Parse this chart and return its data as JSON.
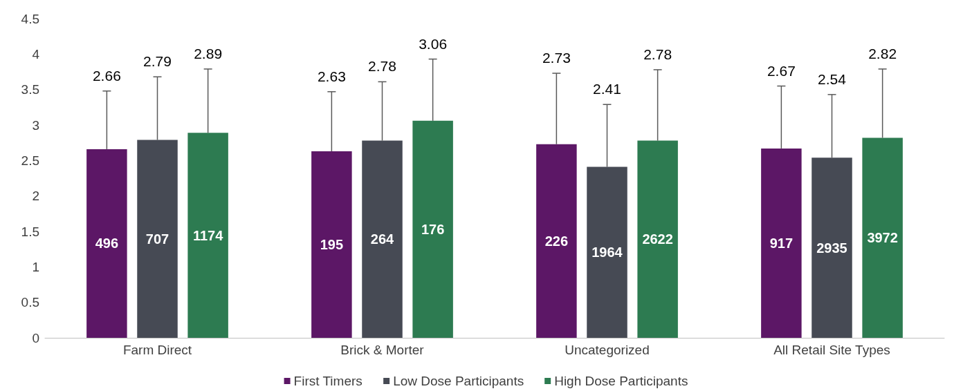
{
  "chart_data": {
    "type": "bar",
    "categories": [
      "Farm Direct",
      "Brick & Morter",
      "Uncategorized",
      "All Retail Site Types"
    ],
    "series": [
      {
        "name": "First Timers",
        "color": "#5c1766",
        "values": [
          2.66,
          2.63,
          2.73,
          2.67
        ],
        "errors": [
          [
            2.66,
            3.48
          ],
          [
            2.63,
            3.47
          ],
          [
            2.73,
            3.73
          ],
          [
            2.67,
            3.55
          ]
        ]
      },
      {
        "name": "Low Dose Participants",
        "color": "#464a54",
        "values": [
          2.79,
          2.78,
          2.41,
          2.54
        ],
        "errors": [
          [
            2.79,
            3.68
          ],
          [
            2.78,
            3.61
          ],
          [
            2.41,
            3.29
          ],
          [
            2.54,
            3.43
          ]
        ]
      },
      {
        "name": "High Dose Participants",
        "color": "#2d7b51",
        "values": [
          2.89,
          3.06,
          2.78,
          2.82
        ],
        "errors": [
          [
            2.89,
            3.79
          ],
          [
            3.06,
            3.93
          ],
          [
            2.78,
            3.78
          ],
          [
            2.82,
            3.79
          ]
        ]
      }
    ],
    "ylim": [
      0,
      4.5
    ],
    "yticks": [
      0,
      0.5,
      1,
      1.5,
      2,
      2.5,
      3,
      3.5,
      4,
      4.5
    ],
    "grid": false,
    "legend": "bottom",
    "annotations": [
      "2.66",
      "2.79",
      "2.89",
      "2.63",
      "2.78",
      "3.06",
      "2.73",
      "2.41",
      "2.78",
      "2.67",
      "2.54",
      "2.82",
      "496",
      "707",
      "1174",
      "195",
      "264",
      "176",
      "226",
      "1964",
      "2622",
      "917",
      "2935",
      "3972"
    ]
  }
}
